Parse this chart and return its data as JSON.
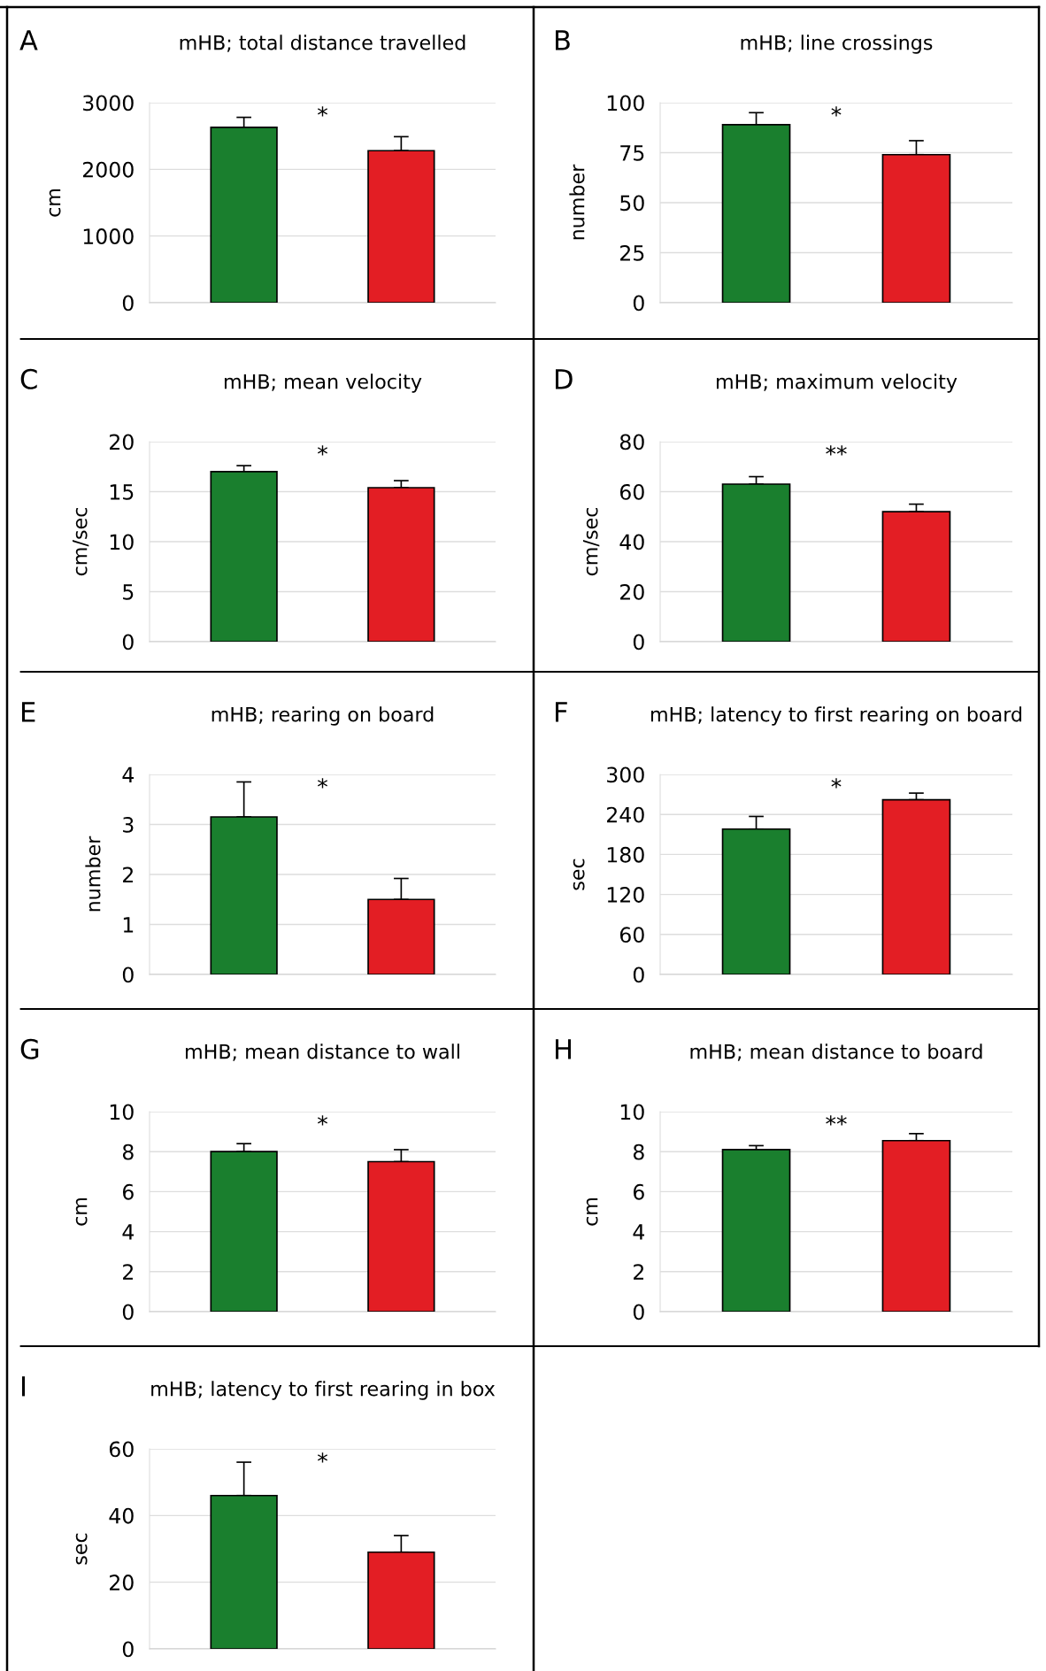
{
  "chart_data": [
    {
      "type": "bar",
      "title": "mHB; total distance travelled",
      "ylabel": "cm",
      "categories": [
        null,
        null
      ],
      "values": [
        2630,
        2280
      ],
      "colors": [
        "#1a7f2e",
        "#e31e24"
      ],
      "errors": [
        [
          2630,
          2780
        ],
        [
          2280,
          2490
        ]
      ],
      "ylim": [
        0,
        3000
      ],
      "yticks": [
        0,
        1000,
        2000,
        3000
      ],
      "grid": "y",
      "annotations": [
        "A",
        "*"
      ]
    },
    {
      "type": "bar",
      "title": "mHB; line crossings",
      "ylabel": "number",
      "categories": [
        null,
        null
      ],
      "values": [
        89,
        74
      ],
      "colors": [
        "#1a7f2e",
        "#e31e24"
      ],
      "errors": [
        [
          89,
          95
        ],
        [
          74,
          81
        ]
      ],
      "ylim": [
        0,
        100
      ],
      "yticks": [
        0,
        25,
        50,
        75,
        100
      ],
      "grid": "y",
      "annotations": [
        "B",
        "*"
      ]
    },
    {
      "type": "bar",
      "title": "mHB; mean velocity",
      "ylabel": "cm/sec",
      "categories": [
        null,
        null
      ],
      "values": [
        17.0,
        15.4
      ],
      "colors": [
        "#1a7f2e",
        "#e31e24"
      ],
      "errors": [
        [
          17.0,
          17.6
        ],
        [
          15.4,
          16.1
        ]
      ],
      "ylim": [
        0,
        20
      ],
      "yticks": [
        0,
        5,
        10,
        15,
        20
      ],
      "grid": "y",
      "annotations": [
        "C",
        "*"
      ]
    },
    {
      "type": "bar",
      "title": "mHB; maximum velocity",
      "ylabel": "cm/sec",
      "categories": [
        null,
        null
      ],
      "values": [
        63,
        52
      ],
      "colors": [
        "#1a7f2e",
        "#e31e24"
      ],
      "errors": [
        [
          63,
          66
        ],
        [
          52,
          55
        ]
      ],
      "ylim": [
        0,
        80
      ],
      "yticks": [
        0,
        20,
        40,
        60,
        80
      ],
      "grid": "y",
      "annotations": [
        "D",
        "**"
      ]
    },
    {
      "type": "bar",
      "title": "mHB; rearing on board",
      "ylabel": "number",
      "categories": [
        null,
        null
      ],
      "values": [
        3.15,
        1.5
      ],
      "colors": [
        "#1a7f2e",
        "#e31e24"
      ],
      "errors": [
        [
          3.15,
          3.85
        ],
        [
          1.5,
          1.92
        ]
      ],
      "ylim": [
        0,
        4
      ],
      "yticks": [
        0,
        1,
        2,
        3,
        4
      ],
      "grid": "y",
      "annotations": [
        "E",
        "*"
      ]
    },
    {
      "type": "bar",
      "title": "mHB; latency to first rearing on board",
      "ylabel": "sec",
      "categories": [
        null,
        null
      ],
      "values": [
        218,
        262
      ],
      "colors": [
        "#1a7f2e",
        "#e31e24"
      ],
      "errors": [
        [
          218,
          237
        ],
        [
          262,
          272
        ]
      ],
      "ylim": [
        0,
        300
      ],
      "yticks": [
        0,
        60,
        120,
        180,
        240,
        300
      ],
      "grid": "y",
      "annotations": [
        "F",
        "*"
      ]
    },
    {
      "type": "bar",
      "title": "mHB; mean distance to wall",
      "ylabel": "cm",
      "categories": [
        null,
        null
      ],
      "values": [
        8.0,
        7.5
      ],
      "colors": [
        "#1a7f2e",
        "#e31e24"
      ],
      "errors": [
        [
          8.0,
          8.4
        ],
        [
          7.5,
          8.1
        ]
      ],
      "ylim": [
        0,
        10
      ],
      "yticks": [
        0,
        2,
        4,
        6,
        8,
        10
      ],
      "grid": "y",
      "annotations": [
        "G",
        "*"
      ]
    },
    {
      "type": "bar",
      "title": "mHB; mean distance to board",
      "ylabel": "cm",
      "categories": [
        null,
        null
      ],
      "values": [
        8.1,
        8.55
      ],
      "colors": [
        "#1a7f2e",
        "#e31e24"
      ],
      "errors": [
        [
          8.1,
          8.3
        ],
        [
          8.55,
          8.9
        ]
      ],
      "ylim": [
        0,
        10
      ],
      "yticks": [
        0,
        2,
        4,
        6,
        8,
        10
      ],
      "grid": "y",
      "annotations": [
        "H",
        "**"
      ]
    },
    {
      "type": "bar",
      "title": "mHB; latency to first rearing in box",
      "ylabel": "sec",
      "categories": [
        null,
        null
      ],
      "values": [
        46,
        29
      ],
      "colors": [
        "#1a7f2e",
        "#e31e24"
      ],
      "errors": [
        [
          46,
          56
        ],
        [
          29,
          34
        ]
      ],
      "ylim": [
        0,
        60
      ],
      "yticks": [
        0,
        20,
        40,
        60
      ],
      "grid": "y",
      "annotations": [
        "I",
        "*"
      ]
    }
  ]
}
